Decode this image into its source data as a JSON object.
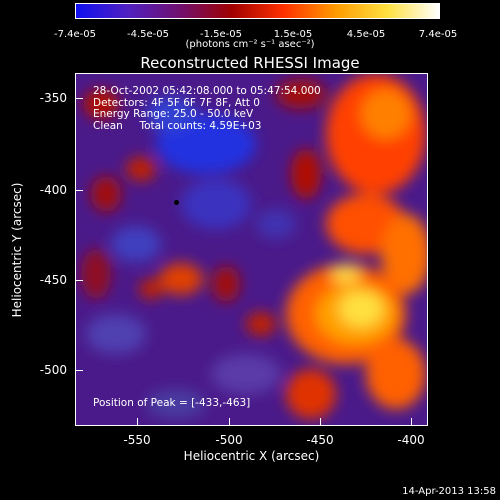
{
  "colorbar": {
    "ticks": [
      "-7.4e-05",
      "-4.5e-05",
      "-1.5e-05",
      "1.5e-05",
      "4.5e-05",
      "7.4e-05"
    ],
    "unit": "(photons cm⁻² s⁻¹ asec⁻²)",
    "colors": [
      "#1010f0",
      "#5020c0",
      "#701070",
      "#a00000",
      "#ff3000",
      "#ff9a00",
      "#ffe040",
      "#ffffff"
    ]
  },
  "title": "Reconstructed RHESSI Image",
  "info": {
    "time_range": "28-Oct-2002 05:42:08.000 to 05:47:54.000",
    "detectors": "Detectors: 4F 5F 6F 7F 8F, Att 0",
    "energy": "Energy Range: 25.0 - 50.0 keV",
    "algorithm": "Clean     Total counts: 4.59E+03"
  },
  "peak_text": "Position of Peak = [-433,-463]",
  "axes": {
    "xlabel": "Heliocentric X (arcsec)",
    "ylabel": "Heliocentric Y (arcsec)",
    "xticks": [
      "-550",
      "-500",
      "-450",
      "-400"
    ],
    "yticks": [
      "-350",
      "-400",
      "-450",
      "-500"
    ]
  },
  "timestamp": "14-Apr-2013 13:58"
}
